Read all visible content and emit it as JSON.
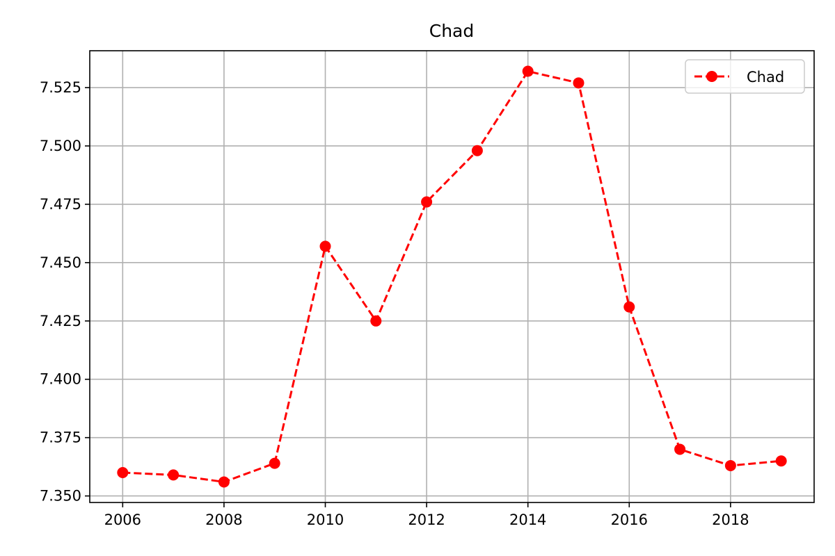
{
  "chart_data": {
    "type": "line",
    "title": "Chad",
    "xlabel": "",
    "ylabel": "",
    "x": [
      2006,
      2007,
      2008,
      2009,
      2010,
      2011,
      2012,
      2013,
      2014,
      2015,
      2016,
      2017,
      2018,
      2019
    ],
    "series": [
      {
        "name": "Chad",
        "values": [
          7.36,
          7.359,
          7.356,
          7.364,
          7.457,
          7.425,
          7.476,
          7.498,
          7.532,
          7.527,
          7.431,
          7.37,
          7.363,
          7.365
        ],
        "color": "#ff0000",
        "line_style": "dashed",
        "marker": "circle"
      }
    ],
    "xlim": [
      2005.35,
      2019.65
    ],
    "ylim": [
      7.3472,
      7.5408
    ],
    "x_ticks": [
      2006,
      2008,
      2010,
      2012,
      2014,
      2016,
      2018
    ],
    "x_tick_labels": [
      "2006",
      "2008",
      "2010",
      "2012",
      "2014",
      "2016",
      "2018"
    ],
    "y_ticks": [
      7.35,
      7.375,
      7.4,
      7.425,
      7.45,
      7.475,
      7.5,
      7.525
    ],
    "y_tick_labels": [
      "7.350",
      "7.375",
      "7.400",
      "7.425",
      "7.450",
      "7.475",
      "7.500",
      "7.525"
    ],
    "grid": true,
    "legend": {
      "position": "top-right",
      "label": "Chad"
    }
  },
  "colors": {
    "series": "#ff0000",
    "grid": "#b0b0b0",
    "axes": "#000000",
    "background": "#ffffff"
  }
}
